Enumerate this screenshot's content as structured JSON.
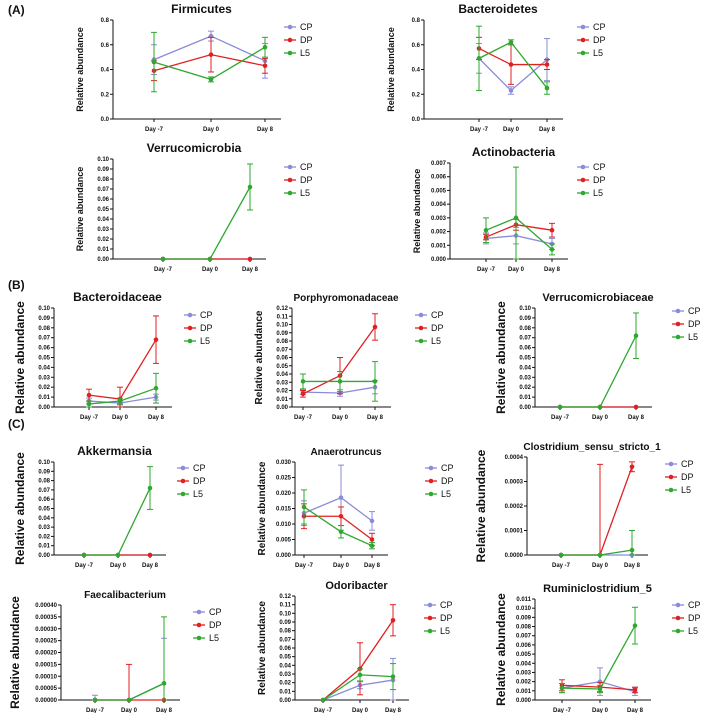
{
  "sections": [
    "(A)",
    "(B)",
    "(C)"
  ],
  "categories": [
    "Day -7",
    "Day 0",
    "Day 8"
  ],
  "ylabel": "Relative abundance",
  "colors": {
    "CP": "#8B8BD9",
    "DP": "#E02020",
    "L5": "#2EA82E"
  },
  "chart_data": [
    {
      "type": "line",
      "title": "Firmicutes",
      "ylim": [
        0,
        0.8
      ],
      "ticks": [
        "0.0",
        "0.2",
        "0.4",
        "0.6",
        "0.8"
      ],
      "categories": [
        "Day -7",
        "Day 0",
        "Day 8"
      ],
      "ylabel": "Relative abundance",
      "series": [
        {
          "name": "CP",
          "values": [
            0.48,
            0.67,
            0.47
          ],
          "errors": [
            0.12,
            0.04,
            0.14
          ]
        },
        {
          "name": "DP",
          "values": [
            0.39,
            0.52,
            0.43
          ],
          "errors": [
            0.08,
            0.14,
            0.06
          ]
        },
        {
          "name": "L5",
          "values": [
            0.46,
            0.32,
            0.58
          ],
          "errors": [
            0.24,
            0.02,
            0.08
          ]
        }
      ]
    },
    {
      "type": "line",
      "title": "Bacteroidetes",
      "ylim": [
        0,
        0.8
      ],
      "ticks": [
        "0.0",
        "0.2",
        "0.4",
        "0.6",
        "0.8"
      ],
      "categories": [
        "Day -7",
        "Day 0",
        "Day 8"
      ],
      "ylabel": "Relative abundance",
      "series": [
        {
          "name": "CP",
          "values": [
            0.49,
            0.23,
            0.48
          ],
          "errors": [
            0.12,
            0.03,
            0.17
          ]
        },
        {
          "name": "DP",
          "values": [
            0.57,
            0.44,
            0.44
          ],
          "errors": [
            0.09,
            0.16,
            0.04
          ]
        },
        {
          "name": "L5",
          "values": [
            0.49,
            0.62,
            0.25
          ],
          "errors": [
            0.26,
            0.02,
            0.05
          ]
        }
      ]
    },
    {
      "type": "line",
      "title": "Verrucomicrobia",
      "ylim": [
        0,
        0.1
      ],
      "ticks": [
        "0.00",
        "0.01",
        "0.02",
        "0.03",
        "0.04",
        "0.05",
        "0.06",
        "0.07",
        "0.08",
        "0.09",
        "0.10"
      ],
      "categories": [
        "Day -7",
        "Day 0",
        "Day 8"
      ],
      "ylabel": "Relative abundance",
      "series": [
        {
          "name": "CP",
          "values": [
            0.0,
            0.0,
            0.0
          ],
          "errors": [
            0,
            0,
            0
          ]
        },
        {
          "name": "DP",
          "values": [
            0.0,
            0.0,
            0.0
          ],
          "errors": [
            0,
            0,
            0
          ]
        },
        {
          "name": "L5",
          "values": [
            0.0,
            0.0,
            0.072
          ],
          "errors": [
            0,
            0,
            0.023
          ]
        }
      ]
    },
    {
      "type": "line",
      "title": "Actinobacteria",
      "ylim": [
        0,
        0.007
      ],
      "ticks": [
        "0.000",
        "0.001",
        "0.002",
        "0.003",
        "0.004",
        "0.005",
        "0.006",
        "0.007"
      ],
      "categories": [
        "Day -7",
        "Day 0",
        "Day 8"
      ],
      "ylabel": "Relative abundance",
      "series": [
        {
          "name": "CP",
          "values": [
            0.0015,
            0.0017,
            0.0011
          ],
          "errors": [
            0.0004,
            0.0006,
            0.0004
          ]
        },
        {
          "name": "DP",
          "values": [
            0.0016,
            0.0025,
            0.0021
          ],
          "errors": [
            0.0002,
            0.0004,
            0.0005
          ]
        },
        {
          "name": "L5",
          "values": [
            0.0021,
            0.003,
            0.0007
          ],
          "errors": [
            0.0009,
            0.0037,
            0.0004
          ]
        }
      ]
    },
    {
      "type": "line",
      "title": "Bacteroidaceae",
      "ylim": [
        0,
        0.1
      ],
      "ticks": [
        "0.00",
        "0.01",
        "0.02",
        "0.03",
        "0.04",
        "0.05",
        "0.06",
        "0.07",
        "0.08",
        "0.09",
        "0.10"
      ],
      "categories": [
        "Day -7",
        "Day 0",
        "Day 8"
      ],
      "ylabel": "Relative abundance",
      "series": [
        {
          "name": "CP",
          "values": [
            0.006,
            0.004,
            0.01
          ],
          "errors": [
            0.003,
            0.002,
            0.003
          ]
        },
        {
          "name": "DP",
          "values": [
            0.012,
            0.008,
            0.068
          ],
          "errors": [
            0.006,
            0.012,
            0.024
          ]
        },
        {
          "name": "L5",
          "values": [
            0.003,
            0.006,
            0.019
          ],
          "errors": [
            0.003,
            0.003,
            0.015
          ]
        }
      ]
    },
    {
      "type": "line",
      "title": "Porphyromonadaceae",
      "ylim": [
        0,
        0.12
      ],
      "ticks": [
        "0.00",
        "0.01",
        "0.02",
        "0.03",
        "0.04",
        "0.05",
        "0.06",
        "0.07",
        "0.08",
        "0.09",
        "0.10",
        "0.11",
        "0.12"
      ],
      "categories": [
        "Day -7",
        "Day 0",
        "Day 8"
      ],
      "ylabel": "Relative abundance",
      "series": [
        {
          "name": "CP",
          "values": [
            0.018,
            0.017,
            0.024
          ],
          "errors": [
            0.003,
            0.004,
            0.008
          ]
        },
        {
          "name": "DP",
          "values": [
            0.016,
            0.038,
            0.097
          ],
          "errors": [
            0.004,
            0.022,
            0.016
          ]
        },
        {
          "name": "L5",
          "values": [
            0.031,
            0.031,
            0.031
          ],
          "errors": [
            0.009,
            0.012,
            0.024
          ]
        }
      ]
    },
    {
      "type": "line",
      "title": "Verrucomicrobiaceae",
      "ylim": [
        0,
        0.1
      ],
      "ticks": [
        "0.00",
        "0.01",
        "0.02",
        "0.03",
        "0.04",
        "0.05",
        "0.06",
        "0.07",
        "0.08",
        "0.09",
        "0.10"
      ],
      "categories": [
        "Day -7",
        "Day 0",
        "Day 8"
      ],
      "ylabel": "Relative abundance",
      "series": [
        {
          "name": "CP",
          "values": [
            0.0,
            0.0,
            0.0
          ],
          "errors": [
            0,
            0,
            0
          ]
        },
        {
          "name": "DP",
          "values": [
            0.0,
            0.0,
            0.0
          ],
          "errors": [
            0,
            0,
            0
          ]
        },
        {
          "name": "L5",
          "values": [
            0.0,
            0.0,
            0.072
          ],
          "errors": [
            0,
            0,
            0.023
          ]
        }
      ]
    },
    {
      "type": "line",
      "title": "Akkermansia",
      "ylim": [
        0,
        0.1
      ],
      "ticks": [
        "0.00",
        "0.01",
        "0.02",
        "0.03",
        "0.04",
        "0.05",
        "0.06",
        "0.07",
        "0.08",
        "0.09",
        "0.10"
      ],
      "categories": [
        "Day -7",
        "Day 0",
        "Day 8"
      ],
      "ylabel": "Relative abundance",
      "series": [
        {
          "name": "CP",
          "values": [
            0.0,
            0.0,
            0.0
          ],
          "errors": [
            0,
            0,
            0
          ]
        },
        {
          "name": "DP",
          "values": [
            0.0,
            0.0,
            0.0
          ],
          "errors": [
            0,
            0,
            0
          ]
        },
        {
          "name": "L5",
          "values": [
            0.0,
            0.0,
            0.072
          ],
          "errors": [
            0,
            0,
            0.023
          ]
        }
      ]
    },
    {
      "type": "line",
      "title": "Anaerotruncus",
      "ylim": [
        0,
        0.03
      ],
      "ticks": [
        "0.000",
        "0.005",
        "0.010",
        "0.015",
        "0.020",
        "0.025",
        "0.030"
      ],
      "categories": [
        "Day -7",
        "Day 0",
        "Day 8"
      ],
      "ylabel": "Relative abundance",
      "series": [
        {
          "name": "CP",
          "values": [
            0.0135,
            0.0185,
            0.011
          ],
          "errors": [
            0.004,
            0.0105,
            0.003
          ]
        },
        {
          "name": "DP",
          "values": [
            0.0125,
            0.0125,
            0.005
          ],
          "errors": [
            0.004,
            0.003,
            0.002
          ]
        },
        {
          "name": "L5",
          "values": [
            0.0155,
            0.0075,
            0.003
          ],
          "errors": [
            0.0055,
            0.002,
            0.001
          ]
        }
      ]
    },
    {
      "type": "line",
      "title": "Clostridium_sensu_stricto_1",
      "ylim": [
        0,
        0.0004
      ],
      "ticks": [
        "0.0000",
        "0.0001",
        "0.0002",
        "0.0003",
        "0.0004"
      ],
      "categories": [
        "Day -7",
        "Day 0",
        "Day 8"
      ],
      "ylabel": "Relative abundance",
      "series": [
        {
          "name": "CP",
          "values": [
            0.0,
            0.0,
            0.0
          ],
          "errors": [
            0,
            0,
            0
          ]
        },
        {
          "name": "DP",
          "values": [
            0.0,
            0.0,
            0.00036
          ],
          "errors": [
            0,
            0.00037,
            2e-05
          ]
        },
        {
          "name": "L5",
          "values": [
            0.0,
            0.0,
            2e-05
          ],
          "errors": [
            0,
            0,
            8e-05
          ]
        }
      ]
    },
    {
      "type": "line",
      "title": "Faecalibacterium",
      "ylim": [
        0,
        0.0004
      ],
      "ticks": [
        "0.00000",
        "0.00005",
        "0.00010",
        "0.00015",
        "0.00020",
        "0.00025",
        "0.00030",
        "0.00035",
        "0.00040"
      ],
      "categories": [
        "Day -7",
        "Day 0",
        "Day 8"
      ],
      "ylabel": "Relative abundance",
      "series": [
        {
          "name": "CP",
          "values": [
            0.0,
            0.0,
            7e-05
          ],
          "errors": [
            2e-05,
            0,
            0.00019
          ]
        },
        {
          "name": "DP",
          "values": [
            0.0,
            0.0,
            0.0
          ],
          "errors": [
            0,
            0.00015,
            0
          ]
        },
        {
          "name": "L5",
          "values": [
            0.0,
            0.0,
            7e-05
          ],
          "errors": [
            0,
            0,
            0.00028
          ]
        }
      ]
    },
    {
      "type": "line",
      "title": "Odoribacter",
      "ylim": [
        0,
        0.12
      ],
      "ticks": [
        "0.00",
        "0.01",
        "0.02",
        "0.03",
        "0.04",
        "0.05",
        "0.06",
        "0.07",
        "0.08",
        "0.09",
        "0.10",
        "0.11",
        "0.12"
      ],
      "categories": [
        "Day -7",
        "Day 0",
        "Day 8"
      ],
      "ylabel": "Relative abundance",
      "series": [
        {
          "name": "CP",
          "values": [
            0.0,
            0.017,
            0.023
          ],
          "errors": [
            0,
            0.004,
            0.025
          ]
        },
        {
          "name": "DP",
          "values": [
            0.0,
            0.036,
            0.092
          ],
          "errors": [
            0,
            0.03,
            0.018
          ]
        },
        {
          "name": "L5",
          "values": [
            0.0,
            0.029,
            0.027
          ],
          "errors": [
            0,
            0.007,
            0.015
          ]
        }
      ]
    },
    {
      "type": "line",
      "title": "Ruminiclostridium_5",
      "ylim": [
        0,
        0.011
      ],
      "ticks": [
        "0.000",
        "0.001",
        "0.002",
        "0.003",
        "0.004",
        "0.005",
        "0.006",
        "0.007",
        "0.008",
        "0.009",
        "0.010",
        "0.011"
      ],
      "categories": [
        "Day -7",
        "Day 0",
        "Day 8"
      ],
      "ylabel": "Relative abundance",
      "series": [
        {
          "name": "CP",
          "values": [
            0.0013,
            0.002,
            0.0009
          ],
          "errors": [
            0.0005,
            0.0015,
            0.0004
          ]
        },
        {
          "name": "DP",
          "values": [
            0.0016,
            0.0014,
            0.0011
          ],
          "errors": [
            0.0006,
            0.0005,
            0.0003
          ]
        },
        {
          "name": "L5",
          "values": [
            0.0013,
            0.0012,
            0.0081
          ],
          "errors": [
            0.0005,
            0.0004,
            0.002
          ]
        }
      ]
    }
  ]
}
